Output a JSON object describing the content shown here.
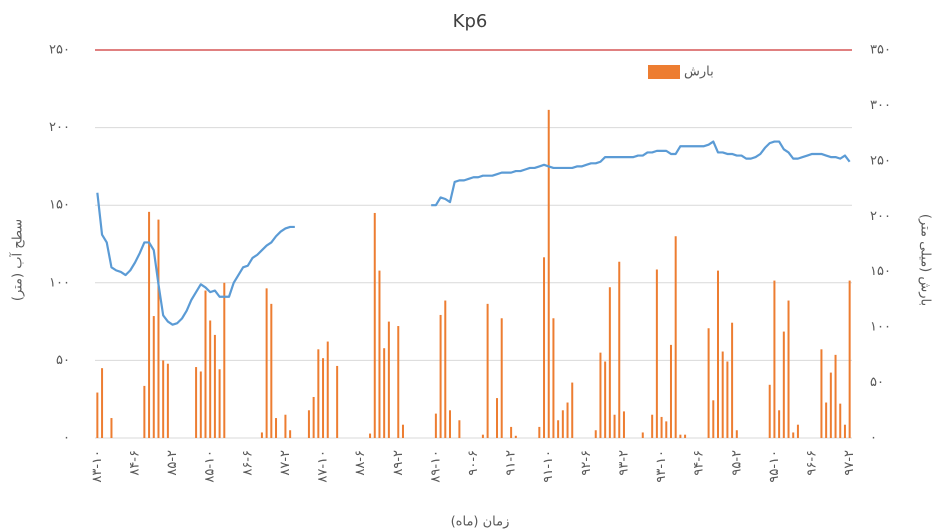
{
  "chart_data": {
    "type": "bar+line",
    "title": "Kp6",
    "xlabel": "زمان (ماه)",
    "ylabel": "سطح آب (متر)",
    "y2label": "بارش (میلی متر)",
    "categories": [
      "۸۳-۱۰",
      null,
      null,
      null,
      null,
      null,
      null,
      null,
      "۸۴-۶",
      null,
      null,
      null,
      null,
      null,
      null,
      null,
      "۸۵-۲",
      null,
      null,
      null,
      null,
      null,
      null,
      null,
      "۸۵-۱۰",
      null,
      null,
      null,
      null,
      null,
      null,
      null,
      "۸۶-۶",
      null,
      null,
      null,
      null,
      null,
      null,
      null,
      "۸۷-۲",
      null,
      null,
      null,
      null,
      null,
      null,
      null,
      "۸۷-۱۰",
      null,
      null,
      null,
      null,
      null,
      null,
      null,
      "۸۸-۶",
      null,
      null,
      null,
      null,
      null,
      null,
      null,
      "۸۹-۲",
      null,
      null,
      null,
      null,
      null,
      null,
      null,
      "۸۹-۱۰",
      null,
      null,
      null,
      null,
      null,
      null,
      null,
      "۹۰-۶",
      null,
      null,
      null,
      null,
      null,
      null,
      null,
      "۹۱-۲",
      null,
      null,
      null,
      null,
      null,
      null,
      null,
      "۹۱-۱۰",
      null,
      null,
      null,
      null,
      null,
      null,
      null,
      "۹۲-۶",
      null,
      null,
      null,
      null,
      null,
      null,
      null,
      "۹۳-۲",
      null,
      null,
      null,
      null,
      null,
      null,
      null,
      "۹۳-۱۰",
      null,
      null,
      null,
      null,
      null,
      null,
      null,
      "۹۴-۶",
      null,
      null,
      null,
      null,
      null,
      null,
      null,
      "۹۵-۲",
      null,
      null,
      null,
      null,
      null,
      null,
      null,
      "۹۵-۱۰",
      null,
      null,
      null,
      null,
      null,
      null,
      null,
      "۹۶-۶",
      null,
      null,
      null,
      null,
      null,
      null,
      null,
      "۹۷-۲"
    ],
    "series": [
      {
        "name": "بارش",
        "kind": "bar",
        "axis": "y2",
        "color": "#ed7d31",
        "values": [
          41,
          63,
          0,
          18,
          0,
          0,
          0,
          0,
          0,
          0,
          47,
          204,
          110,
          197,
          70,
          67,
          0,
          0,
          0,
          0,
          0,
          64,
          60,
          133,
          106,
          93,
          62,
          140,
          0,
          0,
          0,
          0,
          0,
          0,
          0,
          5,
          135,
          121,
          18,
          0,
          21,
          7,
          0,
          0,
          0,
          25,
          37,
          80,
          72,
          87,
          0,
          65,
          0,
          0,
          0,
          0,
          0,
          0,
          4,
          203,
          151,
          81,
          105,
          0,
          101,
          12,
          0,
          0,
          0,
          0,
          0,
          0,
          22,
          111,
          124,
          25,
          0,
          16,
          0,
          0,
          0,
          0,
          3,
          121,
          0,
          36,
          108,
          0,
          10,
          2,
          0,
          0,
          0,
          0,
          10,
          163,
          296,
          108,
          16,
          25,
          32,
          50,
          0,
          0,
          0,
          0,
          7,
          77,
          69,
          136,
          21,
          159,
          24,
          0,
          0,
          0,
          5,
          0,
          21,
          152,
          19,
          15,
          84,
          182,
          3,
          3,
          0,
          0,
          0,
          0,
          99,
          34,
          151,
          78,
          69,
          104,
          7,
          0,
          0,
          0,
          0,
          0,
          0,
          48,
          142,
          25,
          96,
          124,
          5,
          12,
          0,
          0,
          0,
          0,
          80,
          32,
          59,
          75,
          31,
          12,
          142
        ]
      },
      {
        "kind": "line",
        "axis": "y",
        "color": "#5b9bd5",
        "values": [
          158,
          131,
          126,
          110,
          108,
          107,
          105,
          108,
          113,
          119,
          126,
          126,
          121,
          99,
          79,
          75,
          73,
          74,
          77,
          82,
          89,
          94,
          99,
          97,
          94,
          95,
          91,
          91,
          91,
          100,
          105,
          110,
          111,
          116,
          118,
          121,
          124,
          126,
          130,
          133,
          135,
          136,
          136,
          null,
          null,
          null,
          null,
          null,
          null,
          null,
          null,
          null,
          null,
          null,
          null,
          null,
          null,
          null,
          null,
          null,
          null,
          null,
          null,
          null,
          null,
          null,
          null,
          null,
          null,
          null,
          null,
          150,
          150,
          155,
          154,
          152,
          165,
          166,
          166,
          167,
          168,
          168,
          169,
          169,
          169,
          170,
          171,
          171,
          171,
          172,
          172,
          173,
          174,
          174,
          175,
          176,
          175,
          174,
          174,
          174,
          174,
          174,
          175,
          175,
          176,
          177,
          177,
          178,
          181,
          181,
          181,
          181,
          181,
          181,
          181,
          182,
          182,
          184,
          184,
          185,
          185,
          185,
          183,
          183,
          188,
          188,
          188,
          188,
          188,
          188,
          189,
          191,
          184,
          184,
          183,
          183,
          182,
          182,
          180,
          180,
          181,
          183,
          187,
          190,
          191,
          191,
          186,
          184,
          180,
          180,
          181,
          182,
          183,
          183,
          183,
          182,
          181,
          181,
          180,
          182,
          178
        ]
      }
    ],
    "ylim": [
      0,
      250
    ],
    "yticks": [
      {
        "value": 0,
        "label": "۰"
      },
      {
        "value": 50,
        "label": "۵۰"
      },
      {
        "value": 100,
        "label": "۱۰۰"
      },
      {
        "value": 150,
        "label": "۱۵۰"
      },
      {
        "value": 200,
        "label": "۲۰۰"
      },
      {
        "value": 250,
        "label": "۲۵۰"
      }
    ],
    "y2lim": [
      0,
      350
    ],
    "y2ticks": [
      {
        "value": 0,
        "label": "۰"
      },
      {
        "value": 50,
        "label": "۵۰"
      },
      {
        "value": 100,
        "label": "۱۰۰"
      },
      {
        "value": 150,
        "label": "۱۵۰"
      },
      {
        "value": 200,
        "label": "۲۰۰"
      },
      {
        "value": 250,
        "label": "۲۵۰"
      },
      {
        "value": 300,
        "label": "۳۰۰"
      },
      {
        "value": 350,
        "label": "۳۵۰"
      }
    ],
    "grid": true
  }
}
